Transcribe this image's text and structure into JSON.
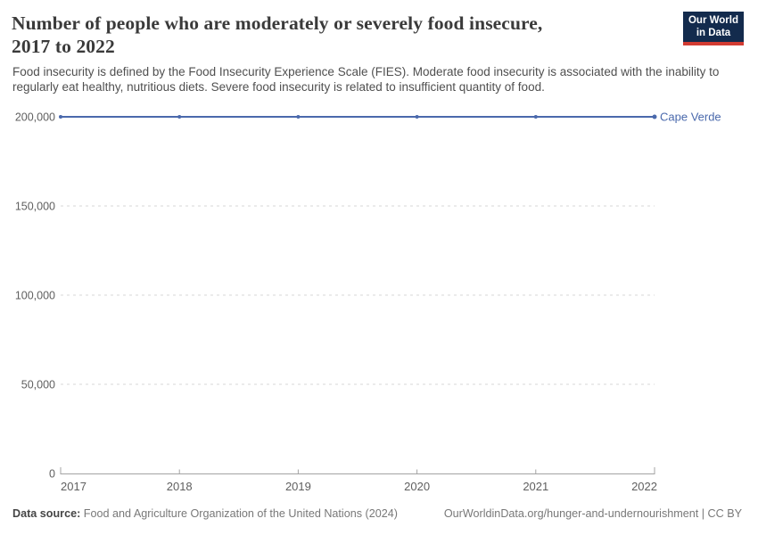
{
  "header": {
    "title_line1": "Number of people who are moderately or severely food insecure,",
    "title_line2": "2017 to 2022",
    "subtitle": "Food insecurity is defined by the Food Insecurity Experience Scale (FIES). Moderate food insecurity is associated with the inability to regularly eat healthy, nutritious diets. Severe food insecurity is related to insufficient quantity of food."
  },
  "logo": {
    "line1": "Our World",
    "line2": "in Data",
    "bg_color": "#132b4d",
    "bar_color": "#d23b32"
  },
  "chart_data": {
    "type": "line",
    "title": "Number of people who are moderately or severely food insecure, 2017 to 2022",
    "x": [
      2017,
      2018,
      2019,
      2020,
      2021,
      2022
    ],
    "series": [
      {
        "name": "Cape Verde",
        "color": "#4a69ac",
        "values": [
          200000,
          200000,
          200000,
          200000,
          200000,
          200000
        ]
      }
    ],
    "ylim": [
      0,
      200000
    ],
    "yticks": [
      0,
      50000,
      100000,
      150000,
      200000
    ],
    "xlabel": "",
    "ylabel": "",
    "grid": "horizontal-dashed",
    "legend_position": "end-of-line"
  },
  "footer": {
    "datasource_label": "Data source:",
    "datasource_value": " Food and Agriculture Organization of the United Nations (2024)",
    "link": "OurWorldinData.org/hunger-and-undernourishment | CC BY"
  }
}
